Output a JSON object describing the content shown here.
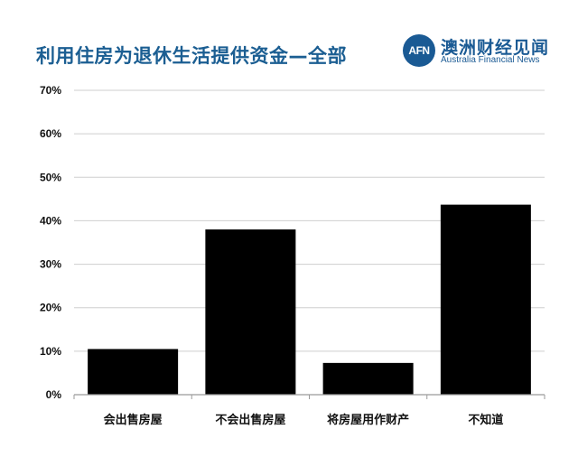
{
  "header": {
    "title": "利用住房为退休生活提供资金—全部"
  },
  "logo": {
    "badge_text": "AFN",
    "name_cn": "澳洲财经见闻",
    "name_en": "Australia Financial News",
    "color": "#1a5a94"
  },
  "chart_data": {
    "type": "bar",
    "categories": [
      "会出售房屋",
      "不会出售房屋",
      "将房屋用作财产",
      "不知道"
    ],
    "values": [
      10.5,
      38,
      7.3,
      43.7
    ],
    "title": "利用住房为退休生活提供资金—全部",
    "xlabel": "",
    "ylabel": "",
    "ylim": [
      0,
      70
    ],
    "y_ticks": [
      0,
      10,
      20,
      30,
      40,
      50,
      60,
      70
    ],
    "y_tick_labels": [
      "0%",
      "10%",
      "20%",
      "30%",
      "40%",
      "50%",
      "60%",
      "70%"
    ],
    "bar_color": "#000000",
    "grid": true,
    "legend": "none"
  }
}
